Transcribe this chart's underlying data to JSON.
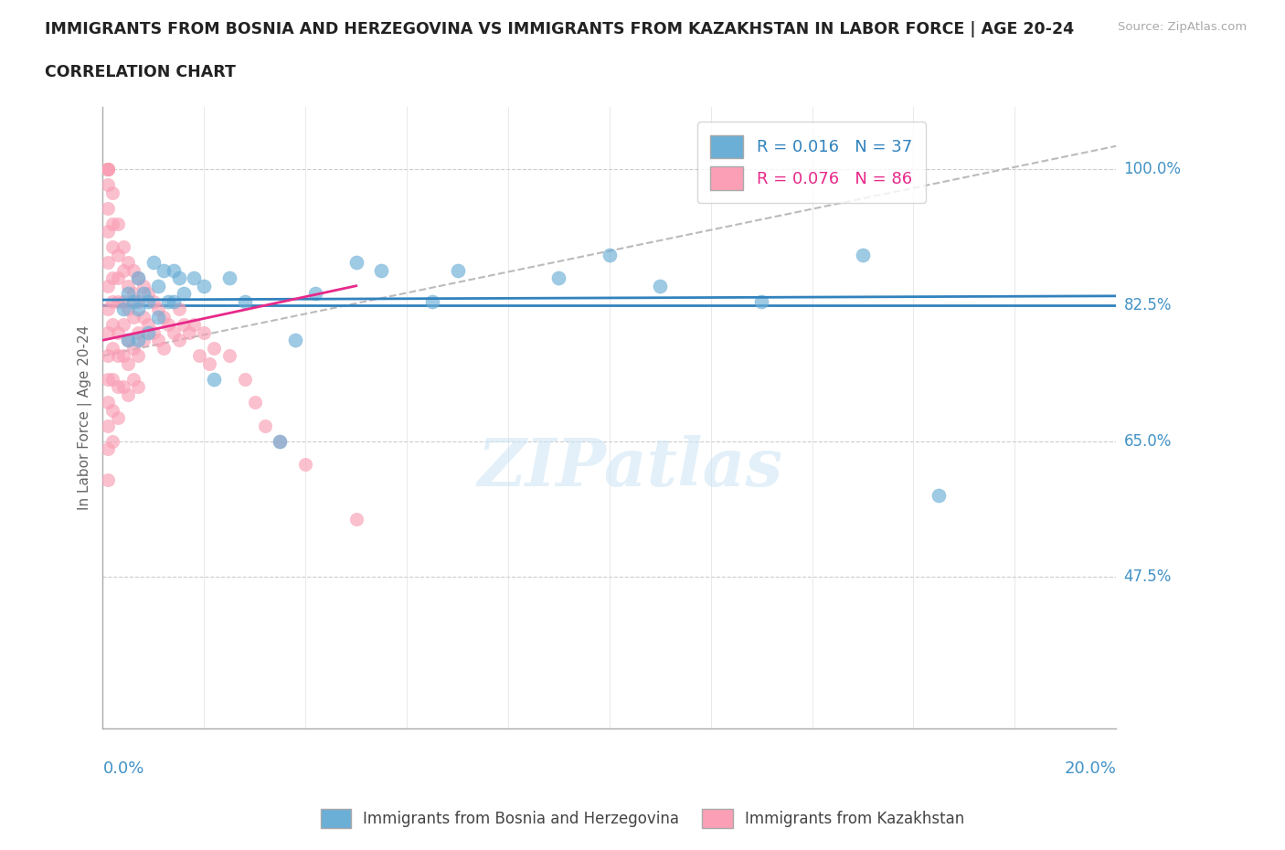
{
  "title": "IMMIGRANTS FROM BOSNIA AND HERZEGOVINA VS IMMIGRANTS FROM KAZAKHSTAN IN LABOR FORCE | AGE 20-24",
  "subtitle": "CORRELATION CHART",
  "source": "Source: ZipAtlas.com",
  "ylabel": "In Labor Force | Age 20-24",
  "yticks": [
    0.475,
    0.65,
    0.825,
    1.0
  ],
  "ytick_labels": [
    "47.5%",
    "65.0%",
    "82.5%",
    "100.0%"
  ],
  "xlim": [
    0.0,
    0.2
  ],
  "ylim": [
    0.28,
    1.08
  ],
  "legend_blue_label": "R = 0.016   N = 37",
  "legend_pink_label": "R = 0.076   N = 86",
  "blue_color": "#6baed6",
  "pink_color": "#fa9fb5",
  "blue_line_color": "#3182bd",
  "pink_line_color": "#e7298a",
  "dashed_line_color": "#bbbbbb",
  "hline_y": 0.825,
  "hline_color": "#3182bd",
  "watermark": "ZIPatlas",
  "blue_scatter_x": [
    0.004,
    0.005,
    0.005,
    0.006,
    0.007,
    0.007,
    0.007,
    0.008,
    0.009,
    0.009,
    0.01,
    0.011,
    0.011,
    0.012,
    0.013,
    0.014,
    0.014,
    0.015,
    0.016,
    0.018,
    0.02,
    0.022,
    0.025,
    0.028,
    0.035,
    0.038,
    0.042,
    0.05,
    0.055,
    0.065,
    0.07,
    0.09,
    0.1,
    0.11,
    0.13,
    0.15,
    0.165
  ],
  "blue_scatter_y": [
    0.82,
    0.84,
    0.78,
    0.83,
    0.86,
    0.82,
    0.78,
    0.84,
    0.83,
    0.79,
    0.88,
    0.85,
    0.81,
    0.87,
    0.83,
    0.87,
    0.83,
    0.86,
    0.84,
    0.86,
    0.85,
    0.73,
    0.86,
    0.83,
    0.65,
    0.78,
    0.84,
    0.88,
    0.87,
    0.83,
    0.87,
    0.86,
    0.89,
    0.85,
    0.83,
    0.89,
    0.58
  ],
  "pink_scatter_x": [
    0.001,
    0.001,
    0.001,
    0.001,
    0.001,
    0.001,
    0.001,
    0.001,
    0.001,
    0.001,
    0.001,
    0.001,
    0.001,
    0.001,
    0.001,
    0.001,
    0.001,
    0.002,
    0.002,
    0.002,
    0.002,
    0.002,
    0.002,
    0.002,
    0.002,
    0.002,
    0.002,
    0.003,
    0.003,
    0.003,
    0.003,
    0.003,
    0.003,
    0.003,
    0.003,
    0.004,
    0.004,
    0.004,
    0.004,
    0.004,
    0.004,
    0.005,
    0.005,
    0.005,
    0.005,
    0.005,
    0.005,
    0.006,
    0.006,
    0.006,
    0.006,
    0.006,
    0.007,
    0.007,
    0.007,
    0.007,
    0.007,
    0.008,
    0.008,
    0.008,
    0.009,
    0.009,
    0.01,
    0.01,
    0.011,
    0.011,
    0.012,
    0.012,
    0.013,
    0.014,
    0.015,
    0.015,
    0.016,
    0.017,
    0.018,
    0.019,
    0.02,
    0.021,
    0.022,
    0.025,
    0.028,
    0.03,
    0.032,
    0.035,
    0.04,
    0.05
  ],
  "pink_scatter_y": [
    1.0,
    1.0,
    1.0,
    1.0,
    0.98,
    0.95,
    0.92,
    0.88,
    0.85,
    0.82,
    0.79,
    0.76,
    0.73,
    0.7,
    0.67,
    0.64,
    0.6,
    0.97,
    0.93,
    0.9,
    0.86,
    0.83,
    0.8,
    0.77,
    0.73,
    0.69,
    0.65,
    0.93,
    0.89,
    0.86,
    0.83,
    0.79,
    0.76,
    0.72,
    0.68,
    0.9,
    0.87,
    0.83,
    0.8,
    0.76,
    0.72,
    0.88,
    0.85,
    0.82,
    0.78,
    0.75,
    0.71,
    0.87,
    0.84,
    0.81,
    0.77,
    0.73,
    0.86,
    0.83,
    0.79,
    0.76,
    0.72,
    0.85,
    0.81,
    0.78,
    0.84,
    0.8,
    0.83,
    0.79,
    0.82,
    0.78,
    0.81,
    0.77,
    0.8,
    0.79,
    0.82,
    0.78,
    0.8,
    0.79,
    0.8,
    0.76,
    0.79,
    0.75,
    0.77,
    0.76,
    0.73,
    0.7,
    0.67,
    0.65,
    0.62,
    0.55
  ],
  "pink_trend_x": [
    0.0,
    0.05
  ],
  "pink_trend_y": [
    0.78,
    0.85
  ],
  "blue_trend_x": [
    0.0,
    0.2
  ],
  "blue_trend_y": [
    0.832,
    0.837
  ],
  "dashed_trend_x": [
    0.0,
    0.2
  ],
  "dashed_trend_y": [
    0.76,
    1.03
  ]
}
